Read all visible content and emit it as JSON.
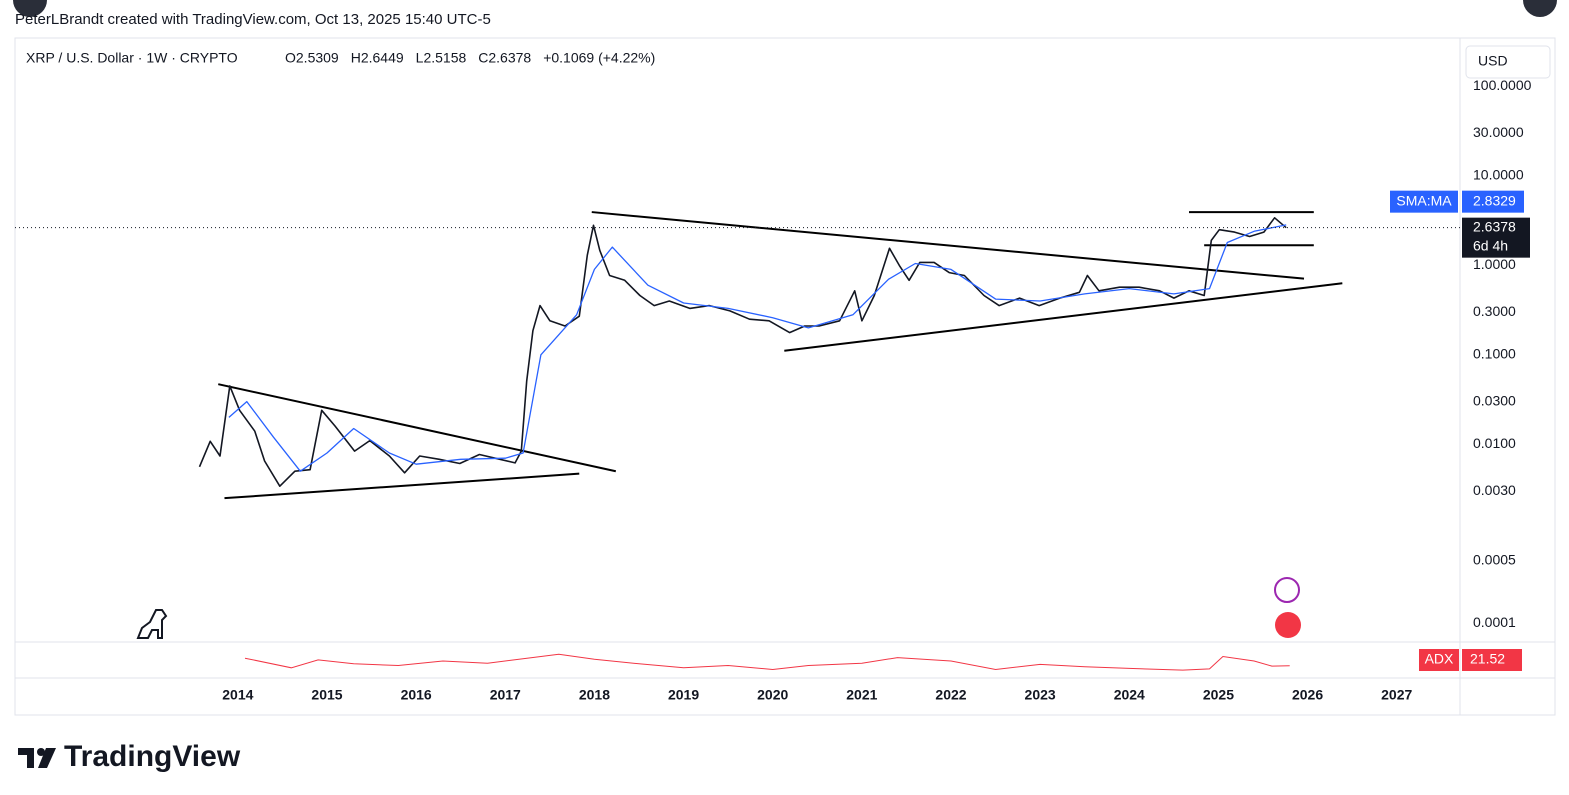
{
  "header": {
    "attribution": "PeterLBrandt created with TradingView.com, Oct 13, 2025 15:40 UTC-5",
    "legend": [
      "O2.5309",
      "H2.6449",
      "L2.5158",
      "C2.6378",
      "+0.1069 (+4.22%)"
    ],
    "currency": "USD"
  },
  "footer": {
    "logo": "TradingView"
  },
  "chart_data": {
    "type": "line",
    "log_scale": true,
    "grid": false,
    "xlim": [
      2011.5,
      2027.71
    ],
    "xticks": [
      2014,
      2015,
      2016,
      2017,
      2018,
      2019,
      2020,
      2021,
      2022,
      2023,
      2024,
      2025,
      2026,
      2027
    ],
    "ylim": [
      6.5e-05,
      330
    ],
    "yticks": [
      {
        "value": 100,
        "label": "100.0000"
      },
      {
        "value": 30,
        "label": "30.0000"
      },
      {
        "value": 10,
        "label": "10.0000"
      },
      {
        "value": 1,
        "label": "1.0000"
      },
      {
        "value": 0.3,
        "label": "0.3000"
      },
      {
        "value": 0.1,
        "label": "0.1000"
      },
      {
        "value": 0.03,
        "label": "0.0300"
      },
      {
        "value": 0.01,
        "label": "0.0100"
      },
      {
        "value": 0.003,
        "label": "0.0030"
      },
      {
        "value": 0.0005,
        "label": "0.0005"
      },
      {
        "value": 0.0001,
        "label": "0.0001"
      }
    ],
    "countdown": "6d 4h",
    "series": [
      {
        "name": "XRP / U.S. Dollar · 1W · CRYPTO",
        "color": "#131722",
        "x": [
          2013.57,
          2013.69,
          2013.8,
          2013.91,
          2014.02,
          2014.19,
          2014.3,
          2014.47,
          2014.64,
          2014.81,
          2014.94,
          2015.09,
          2015.31,
          2015.48,
          2015.7,
          2015.87,
          2016.04,
          2016.26,
          2016.49,
          2016.71,
          2016.94,
          2017.11,
          2017.18,
          2017.24,
          2017.31,
          2017.39,
          2017.5,
          2017.67,
          2017.83,
          2017.92,
          2017.99,
          2018.06,
          2018.17,
          2018.34,
          2018.51,
          2018.67,
          2018.84,
          2019.07,
          2019.29,
          2019.52,
          2019.74,
          2019.96,
          2020.19,
          2020.36,
          2020.52,
          2020.75,
          2020.92,
          2021.0,
          2021.14,
          2021.31,
          2021.42,
          2021.53,
          2021.65,
          2021.81,
          2021.98,
          2022.15,
          2022.37,
          2022.54,
          2022.77,
          2022.99,
          2023.22,
          2023.44,
          2023.53,
          2023.66,
          2023.89,
          2024.11,
          2024.34,
          2024.5,
          2024.67,
          2024.84,
          2024.92,
          2025.01,
          2025.18,
          2025.35,
          2025.51,
          2025.63,
          2025.76
        ],
        "values": [
          0.0056,
          0.0108,
          0.0074,
          0.045,
          0.024,
          0.014,
          0.0065,
          0.0034,
          0.005,
          0.0052,
          0.024,
          0.016,
          0.0084,
          0.011,
          0.0074,
          0.0048,
          0.0074,
          0.0068,
          0.0061,
          0.0077,
          0.0068,
          0.0062,
          0.0084,
          0.051,
          0.186,
          0.355,
          0.24,
          0.21,
          0.27,
          1.3,
          2.8,
          1.47,
          0.77,
          0.68,
          0.46,
          0.355,
          0.4,
          0.33,
          0.355,
          0.31,
          0.25,
          0.24,
          0.177,
          0.21,
          0.21,
          0.24,
          0.52,
          0.24,
          0.46,
          1.55,
          1.0,
          0.68,
          1.08,
          1.08,
          0.83,
          0.77,
          0.46,
          0.355,
          0.43,
          0.355,
          0.43,
          0.5,
          0.77,
          0.52,
          0.57,
          0.57,
          0.52,
          0.43,
          0.52,
          0.46,
          1.9,
          2.5,
          2.35,
          2.1,
          2.35,
          3.4,
          2.6378
        ]
      },
      {
        "name": "SMA:MA",
        "color": "#2962ff",
        "x": [
          2013.9,
          2014.1,
          2014.4,
          2014.7,
          2015.0,
          2015.3,
          2015.7,
          2016.0,
          2016.5,
          2017.0,
          2017.2,
          2017.4,
          2017.8,
          2018.0,
          2018.2,
          2018.6,
          2019.0,
          2019.5,
          2020.0,
          2020.4,
          2020.9,
          2021.3,
          2021.6,
          2022.0,
          2022.5,
          2023.0,
          2023.5,
          2024.0,
          2024.5,
          2024.9,
          2025.1,
          2025.4,
          2025.76
        ],
        "values": [
          0.02,
          0.03,
          0.012,
          0.005,
          0.008,
          0.015,
          0.008,
          0.006,
          0.0068,
          0.007,
          0.008,
          0.1,
          0.28,
          0.9,
          1.6,
          0.6,
          0.38,
          0.33,
          0.26,
          0.2,
          0.28,
          0.7,
          1.05,
          0.9,
          0.42,
          0.4,
          0.48,
          0.55,
          0.48,
          0.55,
          1.8,
          2.4,
          2.8329
        ]
      }
    ],
    "trendlines": [
      {
        "x": [
          2013.78,
          2018.24
        ],
        "values": [
          0.047,
          0.005
        ]
      },
      {
        "x": [
          2013.85,
          2017.83
        ],
        "values": [
          0.0025,
          0.0047
        ]
      },
      {
        "x": [
          2017.97,
          2025.96
        ],
        "values": [
          3.94,
          0.71
        ]
      },
      {
        "x": [
          2020.13,
          2026.39
        ],
        "values": [
          0.111,
          0.63
        ]
      },
      {
        "x": [
          2024.67,
          2026.07
        ],
        "values": [
          3.94,
          3.94
        ]
      },
      {
        "x": [
          2024.84,
          2026.07
        ],
        "values": [
          1.68,
          1.68
        ]
      }
    ],
    "trendline_color": "#000000",
    "indicator": {
      "name": "ADX",
      "color": "#f23645",
      "ylim": [
        0,
        60
      ],
      "x": [
        2014.08,
        2014.6,
        2014.9,
        2015.3,
        2015.8,
        2016.3,
        2016.8,
        2017.3,
        2017.6,
        2018.0,
        2018.5,
        2019.0,
        2019.5,
        2020.0,
        2020.4,
        2021.0,
        2021.4,
        2022.0,
        2022.5,
        2023.0,
        2023.5,
        2024.0,
        2024.6,
        2024.9,
        2025.05,
        2025.4,
        2025.6,
        2025.8
      ],
      "values": [
        35,
        18,
        32,
        25,
        22,
        30,
        26,
        36,
        42,
        33,
        25,
        18,
        22,
        15,
        22,
        26,
        36,
        30,
        15,
        24,
        20,
        17,
        14,
        16,
        38,
        30,
        21,
        21.52
      ]
    }
  }
}
